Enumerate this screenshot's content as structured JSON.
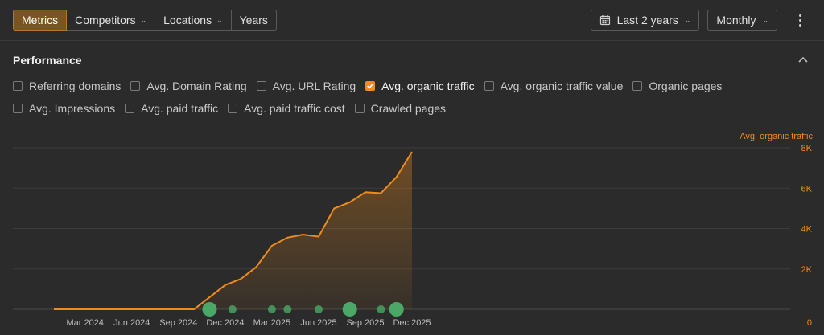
{
  "toolbar": {
    "tabs": [
      {
        "label": "Metrics",
        "active": true,
        "dropdown": false
      },
      {
        "label": "Competitors",
        "active": false,
        "dropdown": true
      },
      {
        "label": "Locations",
        "active": false,
        "dropdown": true
      },
      {
        "label": "Years",
        "active": false,
        "dropdown": false
      }
    ],
    "period_label": "Last 2 years",
    "interval_label": "Monthly"
  },
  "performance": {
    "title": "Performance",
    "metrics_row1": [
      {
        "label": "Referring domains",
        "checked": false
      },
      {
        "label": "Avg. Domain Rating",
        "checked": false
      },
      {
        "label": "Avg. URL Rating",
        "checked": false
      },
      {
        "label": "Avg. organic traffic",
        "checked": true
      },
      {
        "label": "Avg. organic traffic value",
        "checked": false
      },
      {
        "label": "Organic pages",
        "checked": false
      }
    ],
    "metrics_row2": [
      {
        "label": "Avg. Impressions",
        "checked": false
      },
      {
        "label": "Avg. paid traffic",
        "checked": false
      },
      {
        "label": "Avg. paid traffic cost",
        "checked": false
      },
      {
        "label": "Crawled pages",
        "checked": false
      }
    ]
  },
  "colors": {
    "accent": "#f08c1a",
    "active_tab": "#7a5520",
    "marker": "#4caf6a"
  },
  "chart_data": {
    "type": "area",
    "series": [
      {
        "name": "Avg. organic traffic",
        "x": [
          "2024-01",
          "2024-02",
          "2024-03",
          "2024-04",
          "2024-05",
          "2024-06",
          "2024-07",
          "2024-08",
          "2024-09",
          "2024-10",
          "2024-11",
          "2024-12",
          "2025-01",
          "2025-02",
          "2025-03",
          "2025-04",
          "2025-05",
          "2025-06",
          "2025-07",
          "2025-08",
          "2025-09",
          "2025-10",
          "2025-11",
          "2025-12"
        ],
        "values": [
          0,
          0,
          0,
          0,
          0,
          0,
          0,
          0,
          0,
          0,
          600,
          1200,
          1500,
          2100,
          3150,
          3550,
          3700,
          3600,
          5000,
          5300,
          5800,
          5750,
          6550,
          7800
        ]
      }
    ],
    "x_tick_labels": [
      "Mar 2024",
      "Jun 2024",
      "Sep 2024",
      "Dec 2024",
      "Mar 2025",
      "Jun 2025",
      "Sep 2025",
      "Dec 2025"
    ],
    "x_tick_months": [
      "2024-03",
      "2024-06",
      "2024-09",
      "2024-12",
      "2025-03",
      "2025-06",
      "2025-09",
      "2025-12"
    ],
    "y_ticks": [
      {
        "value": 0,
        "label": "0"
      },
      {
        "value": 2000,
        "label": "2K"
      },
      {
        "value": 4000,
        "label": "4K"
      },
      {
        "value": 6000,
        "label": "6K"
      },
      {
        "value": 8000,
        "label": "8K"
      }
    ],
    "ylim": [
      0,
      8000
    ],
    "y_axis_title": "Avg. organic traffic",
    "y_axis_side": "right",
    "grid": true,
    "event_markers": [
      {
        "date": "2024-11-01",
        "size": "large"
      },
      {
        "date": "2024-12-15",
        "size": "small"
      },
      {
        "date": "2025-03-01",
        "size": "small"
      },
      {
        "date": "2025-04-01",
        "size": "small"
      },
      {
        "date": "2025-06-01",
        "size": "small"
      },
      {
        "date": "2025-08-01",
        "size": "large"
      },
      {
        "date": "2025-10-01",
        "size": "small"
      },
      {
        "date": "2025-11-01",
        "size": "large"
      }
    ]
  }
}
